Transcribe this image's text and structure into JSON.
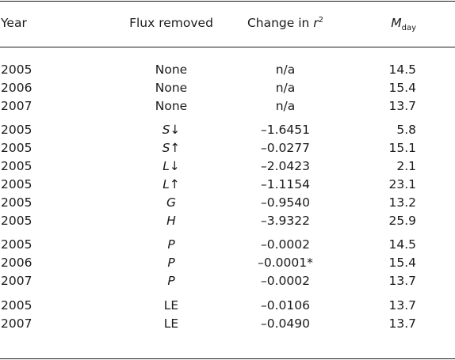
{
  "table": {
    "headers": {
      "year": "Year",
      "flux": "Flux removed",
      "change": "Change in ",
      "change_var": "r",
      "change_sup": "2",
      "m_var": "M",
      "m_sub": "day"
    },
    "rows": [
      {
        "year": "2005",
        "flux": "None",
        "change": "n/a",
        "m": "14.5"
      },
      {
        "year": "2006",
        "flux": "None",
        "change": "n/a",
        "m": "15.4"
      },
      {
        "year": "2007",
        "flux": "None",
        "change": "n/a",
        "m": "13.7"
      },
      {
        "year": "2005",
        "flux": "S↓",
        "change": "–1.6451",
        "m": "5.8"
      },
      {
        "year": "2005",
        "flux": "S↑",
        "change": "–0.0277",
        "m": "15.1"
      },
      {
        "year": "2005",
        "flux": "L↓",
        "change": "–2.0423",
        "m": "2.1"
      },
      {
        "year": "2005",
        "flux": "L↑",
        "change": "–1.1154",
        "m": "23.1"
      },
      {
        "year": "2005",
        "flux": "G",
        "change": "–0.9540",
        "m": "13.2"
      },
      {
        "year": "2005",
        "flux": "H",
        "change": "–3.9322",
        "m": "25.9"
      },
      {
        "year": "2005",
        "flux": "P",
        "change": "–0.0002",
        "m": "14.5"
      },
      {
        "year": "2006",
        "flux": "P",
        "change": "–0.0001*",
        "m": "15.4"
      },
      {
        "year": "2007",
        "flux": "P",
        "change": "–0.0002",
        "m": "13.7"
      },
      {
        "year": "2005",
        "flux": "LE",
        "change": "–0.0106",
        "m": "13.7"
      },
      {
        "year": "2007",
        "flux": "LE",
        "change": "–0.0490",
        "m": "13.7"
      }
    ]
  }
}
